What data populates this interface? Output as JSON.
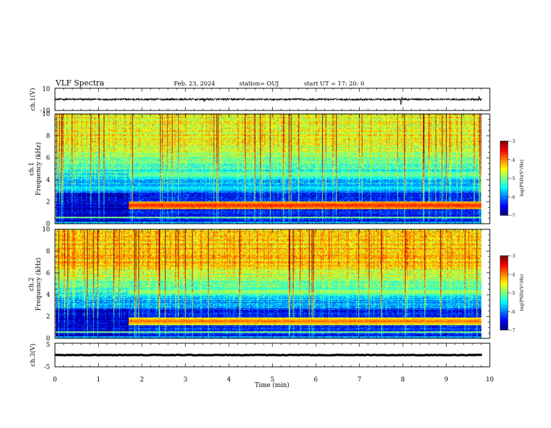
{
  "header": {
    "title": "VLF Spectra",
    "date": "Feb. 23, 2024",
    "station": "station= OUJ",
    "start": "start  UT =   17: 20: 0"
  },
  "chart_data": [
    {
      "type": "line",
      "name": "ch1-waveform",
      "ylabel": "ch.1(V)",
      "ylim": [
        -10,
        10
      ],
      "yticks": [
        "10",
        "-10"
      ],
      "baseline": 0,
      "noise_amplitude": 1.5,
      "spikes": [
        {
          "t": 7.96,
          "v": -4.5
        },
        {
          "t": 7.98,
          "v": 2.0
        },
        {
          "t": 3.43,
          "v": -2.5
        },
        {
          "t": 9.75,
          "v": 3.0
        }
      ]
    },
    {
      "type": "heatmap",
      "name": "ch1-spectrogram",
      "ylabel_line1": "ch.1",
      "ylabel_line2": "Frequency (kHz)",
      "ylim": [
        0,
        10
      ],
      "yticks": [
        "0",
        "2",
        "4",
        "6",
        "8",
        "10"
      ],
      "colorbar": {
        "label": "log(PSD)(V²/Hz)",
        "range": [
          -7,
          -3
        ],
        "ticks": [
          "-3",
          "-4",
          "-5",
          "-6",
          "-7"
        ]
      },
      "transition_time_min": 1.68,
      "bands": [
        {
          "f": 1.7,
          "level": -3.6,
          "after_transition": true
        },
        {
          "f": 4.5,
          "level": -5.0,
          "after_transition": true
        },
        {
          "f": 3.3,
          "level": -5.5,
          "after_transition": false
        }
      ],
      "background_level_high": -4.6,
      "background_level_low": -6.3
    },
    {
      "type": "heatmap",
      "name": "ch2-spectrogram",
      "ylabel_line1": "ch.2",
      "ylabel_line2": "Frequency (kHz)",
      "ylim": [
        0,
        10
      ],
      "yticks": [
        "0",
        "2",
        "4",
        "6",
        "8",
        "10"
      ],
      "colorbar": {
        "label": "log(PSD)(V²/Hz)",
        "range": [
          -7,
          -3
        ],
        "ticks": [
          "-3",
          "-4",
          "-5",
          "-6",
          "-7"
        ]
      },
      "transition_time_min": 1.68,
      "bands": [
        {
          "f": 1.6,
          "level": -3.9,
          "after_transition": true
        },
        {
          "f": 4.3,
          "level": -4.8,
          "after_transition": true
        }
      ],
      "background_level_high": -4.3,
      "background_level_low": -6.2
    },
    {
      "type": "line",
      "name": "ch3-waveform",
      "ylabel": "ch.3(V)",
      "ylim": [
        -5,
        5
      ],
      "yticks": [
        "5",
        "-5"
      ],
      "baseline": 0,
      "noise_amplitude": 0.4
    }
  ],
  "x_axis": {
    "label": "Time (min)",
    "range": [
      0,
      10
    ],
    "ticks": [
      "0",
      "1",
      "2",
      "3",
      "4",
      "5",
      "6",
      "7",
      "8",
      "9",
      "10"
    ],
    "data_end": 9.82
  }
}
